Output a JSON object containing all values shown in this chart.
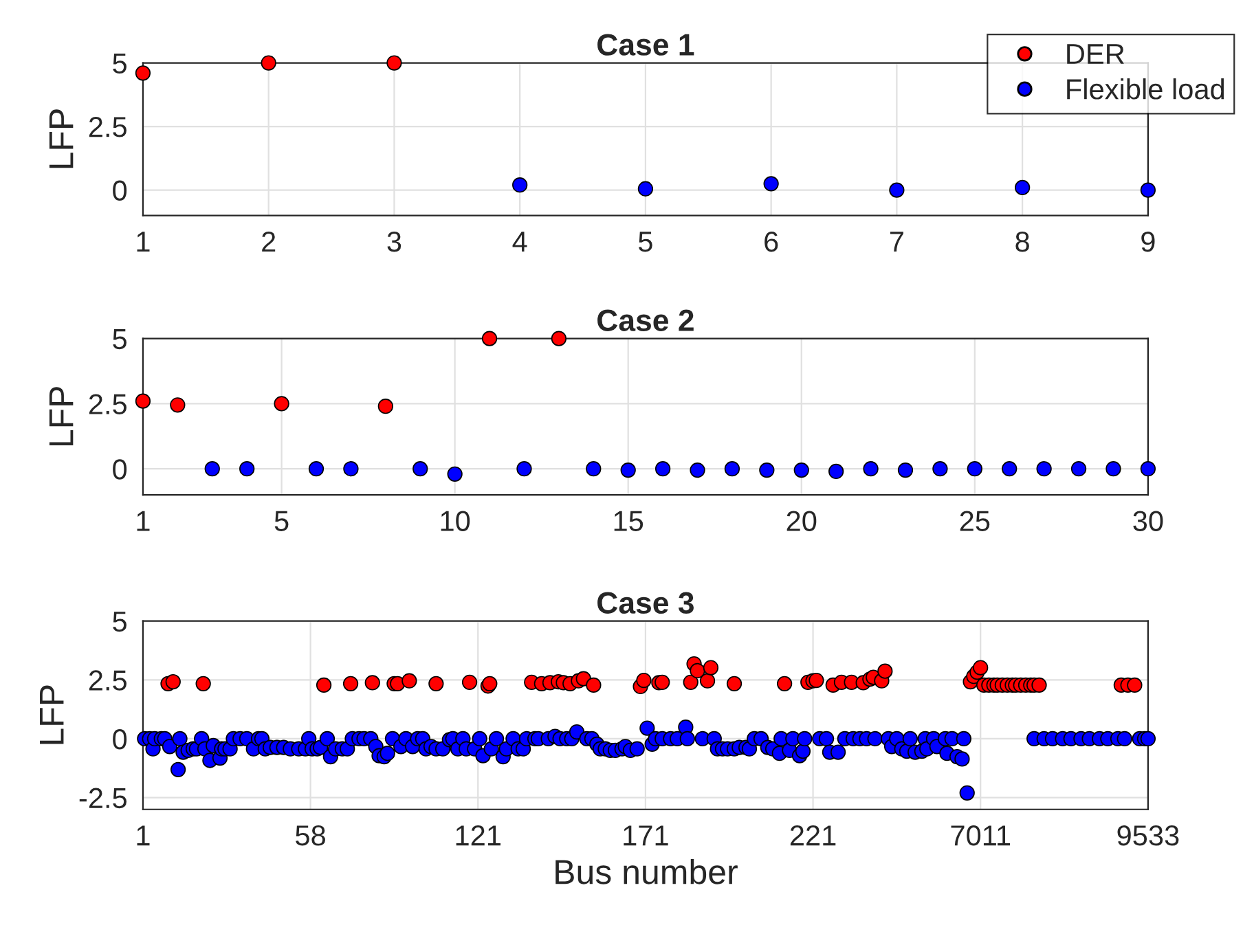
{
  "chart_data": [
    {
      "type": "scatter",
      "title": "Case 1",
      "ylabel": "LFP",
      "xlim": [
        1,
        9
      ],
      "xticks": [
        1,
        2,
        3,
        4,
        5,
        6,
        7,
        8,
        9
      ],
      "ylim": [
        -1,
        5
      ],
      "yticks": [
        0,
        2.5,
        5
      ],
      "grid": true,
      "marker": "circle",
      "legend": "top right",
      "series": [
        {
          "name": "DER",
          "color": "#ff0000",
          "x": [
            1,
            2,
            3
          ],
          "values": [
            4.6,
            5,
            5
          ]
        },
        {
          "name": "Flexible load",
          "color": "#0000ff",
          "x": [
            4,
            5,
            6,
            7,
            8,
            9
          ],
          "values": [
            0.2,
            0.05,
            0.25,
            0,
            0.1,
            0
          ]
        }
      ]
    },
    {
      "type": "scatter",
      "title": "Case 2",
      "ylabel": "LFP",
      "xlim": [
        1,
        30
      ],
      "xticks": [
        1,
        5,
        10,
        15,
        20,
        25,
        30
      ],
      "ylim": [
        -1,
        5
      ],
      "yticks": [
        0,
        2.5,
        5
      ],
      "grid": true,
      "marker": "circle",
      "series": [
        {
          "color": "#ff0000",
          "x": [
            1,
            2,
            5,
            8,
            11,
            13
          ],
          "values": [
            2.6,
            2.45,
            2.5,
            2.4,
            5,
            5
          ]
        },
        {
          "color": "#0000ff",
          "x": [
            3,
            4,
            6,
            7,
            9,
            10,
            12,
            14,
            15,
            16,
            17,
            18,
            19,
            20,
            21,
            22,
            23,
            24,
            25,
            26,
            27,
            28,
            29,
            30
          ],
          "values": [
            0,
            0,
            0,
            0,
            0,
            -0.2,
            0,
            0,
            -0.05,
            0,
            -0.05,
            0,
            -0.05,
            -0.05,
            -0.1,
            0,
            -0.05,
            0,
            0,
            0,
            0,
            0,
            0,
            0
          ]
        }
      ]
    },
    {
      "type": "scatter",
      "title": "Case 3",
      "ylabel": "LFP",
      "xlabel": "Bus number",
      "ylim": [
        -3,
        5
      ],
      "yticks": [
        -2.5,
        0,
        2.5,
        5
      ],
      "grid": true,
      "marker": "circle",
      "categories": [
        "1",
        null,
        null,
        null,
        null,
        null,
        null,
        null,
        null,
        null,
        null,
        null,
        null,
        null,
        null,
        null,
        null,
        null,
        null,
        null,
        null,
        null,
        null,
        null,
        null,
        null,
        null,
        null,
        null,
        null,
        null,
        null,
        null,
        null,
        null,
        null,
        null,
        null,
        null,
        null,
        null,
        null,
        null,
        null,
        null,
        null,
        null,
        null,
        null,
        null,
        null,
        null,
        null,
        null,
        null,
        null,
        null,
        null,
        null,
        null,
        null,
        null,
        null,
        null,
        null,
        null,
        null,
        null,
        null,
        null,
        null,
        null,
        null,
        null,
        null,
        null,
        null,
        null,
        null,
        null,
        null,
        null,
        null,
        null,
        null,
        null,
        null,
        null,
        null,
        null,
        null,
        null,
        null,
        null,
        null,
        null,
        null,
        null,
        null,
        null,
        "58",
        null,
        null,
        null,
        null,
        null,
        null,
        null,
        null,
        null,
        null,
        null,
        null,
        null,
        null,
        null,
        null,
        null,
        null,
        null,
        null,
        null,
        null,
        null,
        null,
        null,
        null,
        null,
        null,
        null,
        null,
        null,
        null,
        null,
        null,
        null,
        null,
        null,
        null,
        null,
        null,
        null,
        null,
        null,
        null,
        null,
        null,
        null,
        null,
        null,
        null,
        null,
        null,
        null,
        null,
        null,
        null,
        null,
        null,
        null,
        null,
        null,
        null,
        null,
        null,
        null,
        null,
        null,
        null,
        null,
        null,
        null,
        null,
        null,
        null,
        null,
        null,
        null,
        null,
        null,
        null,
        null,
        null,
        null,
        null,
        null,
        null,
        null,
        null,
        null,
        null,
        null,
        null,
        null,
        null,
        null,
        null,
        null,
        null,
        null,
        "121",
        null,
        null,
        null,
        null,
        null,
        null,
        null,
        null,
        null,
        null,
        null,
        null,
        null,
        null,
        null,
        null,
        null,
        null,
        null,
        null,
        null,
        null,
        null,
        null,
        null,
        null,
        null,
        null,
        null,
        null,
        null,
        null,
        null,
        null,
        null,
        null,
        null,
        null,
        null,
        null,
        null,
        null,
        null,
        null,
        null,
        null,
        null,
        null,
        null,
        null,
        null,
        null,
        null,
        null,
        null,
        null,
        null,
        null,
        null,
        null,
        null,
        null,
        null,
        null,
        null,
        null,
        null,
        null,
        null,
        null,
        null,
        null,
        null,
        null,
        null,
        null,
        null,
        null,
        null,
        null,
        null,
        null,
        null,
        null,
        null,
        null,
        null,
        null,
        null,
        null,
        null,
        null,
        null,
        null,
        null,
        null,
        null,
        null,
        null,
        "171",
        null,
        null,
        null,
        null,
        null,
        null,
        null,
        null,
        null,
        null,
        null,
        null,
        null,
        null,
        null,
        null,
        null,
        null,
        null,
        null,
        null,
        null,
        null,
        null,
        null,
        null,
        null,
        null,
        null,
        null,
        null,
        null,
        null,
        null,
        null,
        null,
        null,
        null,
        null,
        null,
        null,
        null,
        null,
        null,
        null,
        null,
        null,
        null,
        null,
        null,
        null,
        null,
        null,
        null,
        null,
        null,
        null,
        null,
        null,
        null,
        null,
        null,
        null,
        null,
        null,
        null,
        null,
        null,
        null,
        null,
        null,
        null,
        null,
        null,
        null,
        null,
        null,
        null,
        null,
        null,
        null,
        null,
        null,
        null,
        null,
        null,
        null,
        null,
        null,
        null,
        null,
        null,
        null,
        null,
        null,
        null,
        null,
        null,
        null,
        "221",
        null,
        null,
        null,
        null,
        null,
        null,
        null,
        null,
        null,
        null,
        null,
        null,
        null,
        null,
        null,
        null,
        null,
        null,
        null,
        null,
        null,
        null,
        null,
        null,
        null,
        null,
        null,
        null,
        null,
        null,
        null,
        null,
        null,
        null,
        null,
        null,
        null,
        null,
        null,
        null,
        null,
        null,
        null,
        null,
        null,
        null,
        null,
        null,
        null,
        null,
        null,
        null,
        null,
        null,
        null,
        null,
        null,
        null,
        null,
        null,
        null,
        null,
        null,
        null,
        null,
        null,
        null,
        null,
        null,
        null,
        null,
        null,
        null,
        null,
        null,
        null,
        null,
        null,
        null,
        null,
        null,
        null,
        null,
        null,
        null,
        null,
        null,
        null,
        null,
        null,
        null,
        null,
        null,
        null,
        null,
        null,
        null,
        null,
        null,
        "7011",
        null,
        null,
        null,
        null,
        null,
        null,
        null,
        null,
        null,
        null,
        null,
        null,
        null,
        null,
        null,
        null,
        null,
        null,
        null,
        null,
        null,
        null,
        null,
        null,
        null,
        null,
        null,
        null,
        null,
        null,
        null,
        null,
        null,
        null,
        null,
        null,
        null,
        null,
        null,
        null,
        null,
        null,
        null,
        null,
        null,
        null,
        null,
        null,
        null,
        null,
        null,
        null,
        null,
        null,
        null,
        null,
        null,
        null,
        null,
        null,
        null,
        null,
        null,
        null,
        null,
        null,
        null,
        null,
        null,
        null,
        null,
        null,
        null,
        null,
        null,
        null,
        null,
        null,
        null,
        null,
        null,
        null,
        null,
        null,
        null,
        null,
        null,
        null,
        null,
        null,
        null,
        null,
        null,
        null,
        null,
        null,
        null,
        null,
        null,
        "9533"
      ],
      "series": [
        {
          "color": "#ff0000",
          "values": [
            null,
            null,
            null,
            null,
            null,
            null,
            null,
            null,
            null,
            null,
            null,
            null,
            null,
            null,
            null,
            2.34,
            null,
            null,
            2.42,
            null,
            null,
            null,
            null,
            null,
            null,
            null,
            null,
            null,
            null,
            null,
            null,
            null,
            null,
            null,
            null,
            null,
            2.34,
            null,
            null,
            null,
            null,
            null,
            null,
            null,
            null,
            null,
            null,
            null,
            null,
            null,
            null,
            null,
            null,
            null,
            null,
            null,
            null,
            null,
            null,
            null,
            null,
            null,
            null,
            null,
            null,
            null,
            null,
            null,
            null,
            null,
            null,
            null,
            null,
            null,
            null,
            null,
            null,
            null,
            null,
            null,
            null,
            null,
            null,
            null,
            null,
            null,
            null,
            null,
            null,
            null,
            null,
            null,
            null,
            null,
            null,
            null,
            null,
            null,
            null,
            null,
            null,
            null,
            null,
            null,
            null,
            null,
            null,
            null,
            2.28,
            null,
            null,
            null,
            null,
            null,
            null,
            null,
            null,
            null,
            null,
            null,
            null,
            null,
            null,
            null,
            2.34,
            null,
            null,
            null,
            null,
            null,
            null,
            null,
            null,
            null,
            null,
            null,
            null,
            2.38,
            null,
            null,
            null,
            null,
            null,
            null,
            null,
            null,
            null,
            null,
            null,
            null,
            2.34,
            null,
            2.34,
            null,
            null,
            null,
            null,
            null,
            null,
            2.46,
            null,
            null,
            null,
            null,
            null,
            null,
            null,
            null,
            null,
            null,
            null,
            null,
            null,
            null,
            null,
            2.34,
            null,
            null,
            null,
            null,
            null,
            null,
            null,
            null,
            null,
            null,
            null,
            null,
            null,
            null,
            null,
            null,
            null,
            null,
            null,
            2.4,
            null,
            null,
            null,
            null,
            null,
            null,
            null,
            null,
            null,
            null,
            2.24,
            2.34,
            null,
            null,
            null,
            null,
            null,
            null,
            null,
            null,
            null,
            null,
            null,
            null,
            null,
            null,
            null,
            null,
            null,
            null,
            null,
            null,
            null,
            null,
            null,
            null,
            2.4,
            null,
            null,
            null,
            null,
            null,
            2.34,
            null,
            null,
            null,
            null,
            2.38,
            null,
            null,
            null,
            null,
            2.42,
            null,
            null,
            2.38,
            null,
            null,
            null,
            2.34,
            null,
            null,
            null,
            null,
            2.46,
            null,
            null,
            2.55,
            null,
            null,
            null,
            null,
            null,
            2.28,
            null,
            null,
            null,
            null,
            null,
            null,
            null,
            null,
            null,
            null,
            null,
            null,
            null,
            null,
            null,
            null,
            null,
            null,
            null,
            null,
            null,
            null,
            null,
            null,
            null,
            null,
            null,
            2.22,
            null,
            2.48,
            null,
            null,
            null,
            null,
            null,
            null,
            null,
            null,
            2.38,
            null,
            2.4,
            null,
            null,
            null,
            null,
            null,
            null,
            null,
            null,
            null,
            null,
            null,
            null,
            null,
            null,
            null,
            null,
            2.4,
            null,
            3.18,
            null,
            2.89,
            null,
            null,
            null,
            null,
            null,
            2.46,
            null,
            3.02,
            null,
            null,
            null,
            null,
            null,
            null,
            null,
            null,
            null,
            null,
            null,
            null,
            null,
            2.34,
            null,
            null,
            null,
            null,
            null,
            null,
            null,
            null,
            null,
            null,
            null,
            null,
            null,
            null,
            null,
            null,
            null,
            null,
            null,
            null,
            null,
            null,
            null,
            null,
            null,
            null,
            null,
            null,
            null,
            2.34,
            null,
            null,
            null,
            null,
            null,
            null,
            null,
            null,
            null,
            null,
            null,
            null,
            null,
            2.4,
            null,
            null,
            2.46,
            null,
            2.48,
            null,
            null,
            null,
            null,
            null,
            null,
            null,
            null,
            null,
            2.28,
            null,
            null,
            null,
            null,
            2.4,
            null,
            null,
            null,
            null,
            null,
            2.4,
            null,
            null,
            null,
            null,
            null,
            null,
            2.38,
            null,
            null,
            null,
            2.53,
            null,
            2.61,
            null,
            null,
            null,
            null,
            2.46,
            null,
            2.87,
            null,
            null,
            null,
            null,
            null,
            null,
            null,
            null,
            null,
            null,
            null,
            null,
            null,
            null,
            null,
            null,
            null,
            null,
            null,
            null,
            null,
            null,
            null,
            null,
            null,
            null,
            null,
            null,
            null,
            null,
            null,
            null,
            null,
            null,
            null,
            null,
            null,
            null,
            null,
            null,
            null,
            null,
            null,
            null,
            null,
            null,
            null,
            null,
            null,
            null,
            2.42,
            null,
            2.65,
            null,
            2.83,
            null,
            3.02,
            null,
            2.28,
            null,
            null,
            2.28,
            null,
            null,
            2.28,
            null,
            2.28,
            null,
            null,
            2.28,
            null,
            null,
            2.28,
            null,
            null,
            2.28,
            null,
            2.28,
            null,
            null,
            2.28,
            null,
            null,
            2.28,
            null,
            null,
            2.28,
            null,
            2.28,
            null,
            null,
            2.28,
            null,
            null,
            null,
            null,
            null,
            null,
            null,
            null,
            null,
            null,
            null,
            null,
            null,
            null,
            null,
            null,
            null,
            null,
            null,
            null,
            null,
            null,
            null,
            null,
            null,
            null,
            null,
            null,
            null,
            null,
            null,
            null,
            null,
            null,
            null,
            null,
            null,
            null,
            null,
            null,
            null,
            null,
            null,
            null,
            null,
            null,
            null,
            null,
            2.28,
            null,
            null,
            null,
            2.28,
            null,
            null,
            null,
            2.28,
            null,
            null,
            null,
            null,
            null,
            null,
            null,
            null
          ]
        },
        {
          "color": "#0000ff",
          "values": [
            null,
            0,
            null,
            null,
            0,
            null,
            -0.43,
            0,
            null,
            null,
            null,
            0,
            null,
            0,
            null,
            null,
            -0.33,
            null,
            null,
            null,
            null,
            -1.31,
            0,
            null,
            -0.57,
            null,
            null,
            -0.49,
            null,
            null,
            -0.43,
            null,
            -0.43,
            null,
            null,
            0,
            null,
            -0.43,
            null,
            null,
            -0.92,
            null,
            -0.29,
            null,
            null,
            null,
            -0.82,
            -0.43,
            null,
            -0.43,
            null,
            null,
            -0.43,
            null,
            0,
            null,
            null,
            null,
            0,
            null,
            null,
            null,
            0,
            null,
            null,
            null,
            -0.43,
            null,
            null,
            0,
            null,
            0,
            null,
            -0.43,
            null,
            null,
            -0.37,
            null,
            null,
            null,
            -0.37,
            null,
            null,
            null,
            -0.37,
            null,
            null,
            null,
            -0.43,
            null,
            null,
            null,
            null,
            -0.43,
            null,
            null,
            null,
            -0.43,
            null,
            0,
            null,
            -0.43,
            null,
            null,
            -0.43,
            null,
            -0.37,
            null,
            null,
            null,
            0,
            null,
            -0.76,
            null,
            null,
            -0.43,
            null,
            null,
            null,
            -0.43,
            null,
            null,
            -0.43,
            null,
            null,
            0,
            null,
            null,
            null,
            0,
            null,
            null,
            0,
            null,
            null,
            null,
            0,
            null,
            null,
            -0.33,
            null,
            -0.72,
            null,
            null,
            -0.76,
            null,
            -0.62,
            null,
            null,
            0,
            null,
            null,
            null,
            null,
            -0.33,
            null,
            null,
            0,
            null,
            null,
            null,
            -0.33,
            null,
            null,
            0,
            null,
            null,
            0,
            null,
            -0.43,
            null,
            null,
            -0.33,
            null,
            null,
            -0.43,
            null,
            null,
            null,
            -0.43,
            null,
            null,
            null,
            -0.04,
            null,
            0,
            null,
            null,
            -0.43,
            null,
            null,
            0,
            null,
            -0.43,
            null,
            null,
            null,
            null,
            -0.43,
            null,
            null,
            0,
            null,
            -0.72,
            null,
            null,
            null,
            null,
            -0.43,
            null,
            null,
            0,
            null,
            null,
            null,
            -0.76,
            null,
            -0.43,
            null,
            null,
            null,
            0,
            null,
            null,
            -0.43,
            null,
            null,
            -0.43,
            null,
            0,
            null,
            null,
            null,
            null,
            0,
            null,
            0,
            null,
            null,
            null,
            null,
            null,
            0,
            null,
            null,
            null,
            0.1,
            null,
            null,
            0,
            null,
            null,
            null,
            0,
            null,
            null,
            0,
            null,
            null,
            0.29,
            null,
            null,
            null,
            null,
            null,
            0,
            null,
            null,
            0,
            null,
            null,
            -0.23,
            null,
            -0.43,
            null,
            null,
            -0.43,
            null,
            null,
            -0.49,
            null,
            null,
            -0.49,
            null,
            null,
            null,
            -0.43,
            null,
            -0.33,
            null,
            null,
            -0.49,
            null,
            null,
            null,
            -0.43,
            null,
            null,
            null,
            null,
            null,
            0.45,
            null,
            null,
            -0.23,
            null,
            0,
            null,
            null,
            null,
            0,
            null,
            null,
            null,
            null,
            0,
            null,
            null,
            null,
            0,
            null,
            null,
            null,
            null,
            0.49,
            0,
            null,
            null,
            null,
            null,
            null,
            null,
            null,
            null,
            0,
            null,
            null,
            null,
            null,
            null,
            null,
            0,
            null,
            -0.43,
            null,
            null,
            -0.43,
            null,
            null,
            -0.43,
            null,
            null,
            null,
            -0.43,
            null,
            null,
            -0.37,
            null,
            null,
            null,
            -0.37,
            null,
            -0.43,
            null,
            null,
            0,
            null,
            null,
            null,
            0,
            null,
            null,
            null,
            -0.37,
            null,
            null,
            -0.43,
            null,
            null,
            null,
            -0.62,
            0,
            null,
            null,
            null,
            null,
            -0.49,
            null,
            0,
            null,
            null,
            null,
            -0.72,
            null,
            -0.53,
            0,
            null,
            null,
            null,
            null,
            null,
            null,
            null,
            null,
            0,
            null,
            null,
            null,
            0,
            null,
            -0.57,
            null,
            null,
            null,
            null,
            -0.57,
            null,
            null,
            null,
            0,
            null,
            null,
            null,
            null,
            0,
            null,
            null,
            null,
            0,
            null,
            null,
            null,
            0,
            null,
            null,
            null,
            null,
            0,
            null,
            null,
            null,
            null,
            null,
            null,
            null,
            0,
            null,
            -0.33,
            null,
            null,
            0,
            null,
            null,
            -0.43,
            null,
            null,
            -0.53,
            null,
            0,
            null,
            null,
            -0.57,
            null,
            null,
            null,
            -0.53,
            null,
            0,
            -0.43,
            null,
            null,
            null,
            0,
            null,
            -0.33,
            null,
            null,
            null,
            null,
            0,
            -0.62,
            null,
            null,
            0,
            null,
            null,
            -0.76,
            null,
            null,
            -0.86,
            0,
            null,
            -2.3,
            null,
            null,
            null,
            null,
            null,
            null,
            null,
            null,
            null,
            null,
            null,
            null,
            null,
            null,
            null,
            null,
            null,
            null,
            null,
            null,
            null,
            null,
            null,
            null,
            null,
            null,
            null,
            null,
            null,
            null,
            null,
            null,
            null,
            null,
            null,
            null,
            null,
            null,
            null,
            0,
            null,
            null,
            null,
            null,
            null,
            0,
            null,
            null,
            null,
            null,
            0,
            null,
            null,
            null,
            null,
            null,
            0,
            null,
            null,
            null,
            null,
            0,
            null,
            null,
            null,
            null,
            null,
            0,
            null,
            null,
            null,
            null,
            0,
            null,
            null,
            null,
            null,
            null,
            0,
            null,
            null,
            null,
            null,
            0,
            null,
            null,
            null,
            null,
            null,
            0,
            null,
            null,
            null,
            0,
            null,
            null,
            null,
            null,
            null,
            null,
            null,
            null,
            0,
            null,
            null,
            0,
            null,
            0
          ]
        }
      ]
    }
  ]
}
